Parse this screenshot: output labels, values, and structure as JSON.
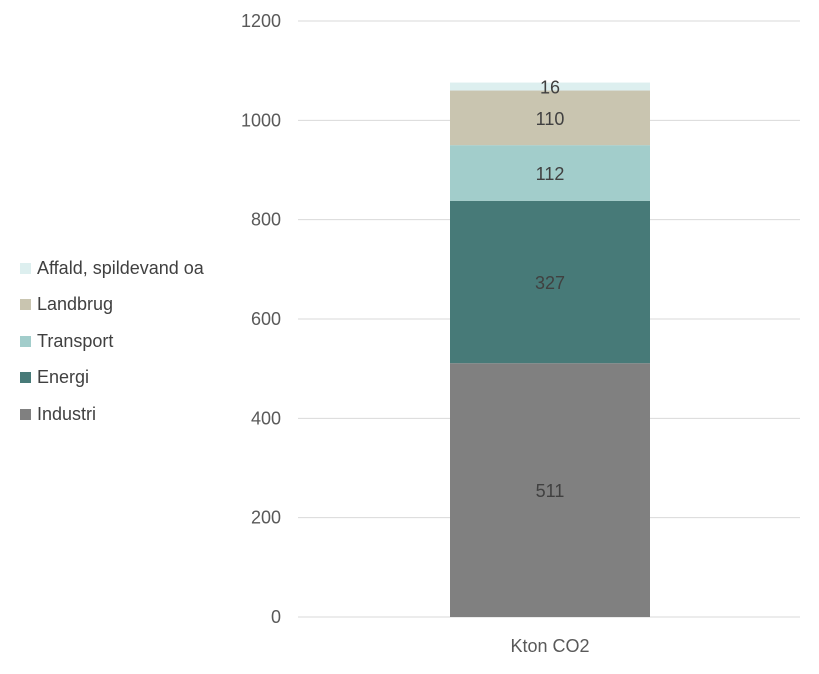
{
  "chart_data": {
    "type": "bar",
    "stacked": true,
    "categories": [
      "Kton CO2"
    ],
    "series": [
      {
        "name": "Industri",
        "values": [
          511
        ],
        "color": "#808080"
      },
      {
        "name": "Energi",
        "values": [
          327
        ],
        "color": "#477A78"
      },
      {
        "name": "Transport",
        "values": [
          112
        ],
        "color": "#A2CDCB"
      },
      {
        "name": "Landbrug",
        "values": [
          110
        ],
        "color": "#C9C5B0"
      },
      {
        "name": "Affald, spildevand oa",
        "values": [
          16
        ],
        "color": "#DDEFEF"
      }
    ],
    "y_ticks": [
      "0",
      "200",
      "400",
      "600",
      "800",
      "1000",
      "1200"
    ],
    "ylim": [
      0,
      1200
    ],
    "grid": true,
    "legend_position": "left",
    "legend_order": [
      "Affald, spildevand oa",
      "Landbrug",
      "Transport",
      "Energi",
      "Industri"
    ]
  }
}
